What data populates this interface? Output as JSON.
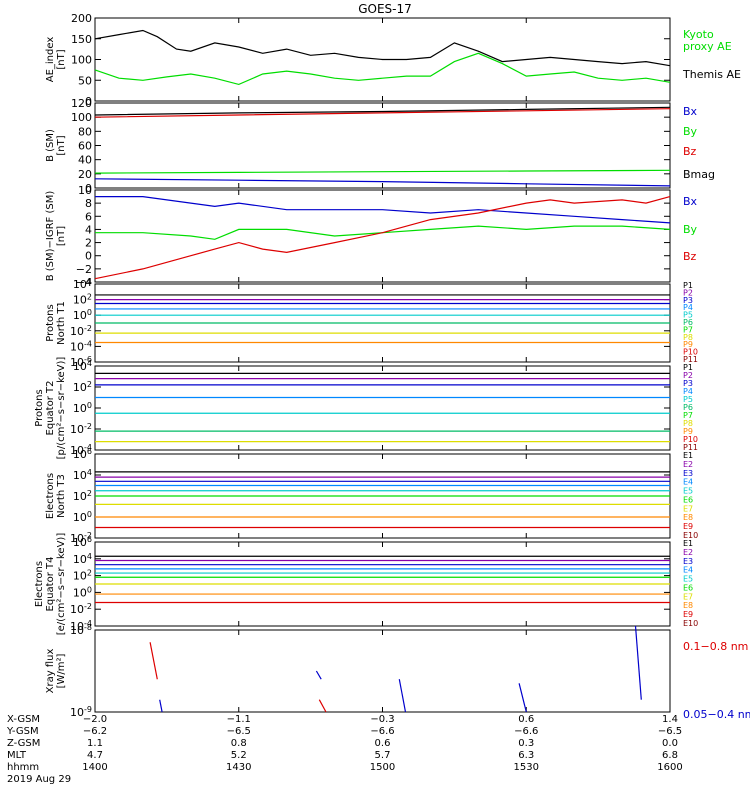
{
  "title": "GOES-17",
  "colors": {
    "frame": "#000000",
    "green": "#00dd00",
    "blue": "#0000cc",
    "red": "#dd0000",
    "orange": "#ff8800",
    "yellow": "#dddd00",
    "cyan": "#00cccc",
    "teal": "#00aaaa",
    "purple": "#8800aa"
  },
  "chart_data": [
    {
      "id": "ae",
      "type": "line",
      "ylabel": [
        "AE_index",
        "[nT]"
      ],
      "ylim": [
        0,
        200
      ],
      "yticks": [
        "0",
        "50",
        "100",
        "150",
        "200"
      ],
      "legend": [
        {
          "text": "Kyoto",
          "color": "#00dd00"
        },
        {
          "text": "proxy AE",
          "color": "#00dd00"
        },
        {
          "text": "Themis AE",
          "color": "#000000"
        }
      ],
      "series": [
        {
          "name": "Themis AE",
          "color": "#000000",
          "x": [
            0,
            5,
            10,
            13,
            17,
            20,
            25,
            30,
            35,
            40,
            45,
            50,
            55,
            60,
            65,
            70,
            75,
            80,
            85,
            90,
            95,
            100,
            105,
            110,
            115,
            120
          ],
          "y": [
            150,
            160,
            170,
            155,
            125,
            120,
            140,
            130,
            115,
            125,
            110,
            115,
            105,
            100,
            100,
            105,
            140,
            120,
            95,
            100,
            105,
            100,
            95,
            90,
            95,
            85
          ]
        },
        {
          "name": "Kyoto proxy AE",
          "color": "#00dd00",
          "x": [
            0,
            5,
            10,
            15,
            20,
            25,
            30,
            35,
            40,
            45,
            50,
            55,
            60,
            65,
            70,
            75,
            80,
            85,
            90,
            95,
            100,
            105,
            110,
            115,
            120
          ],
          "y": [
            75,
            55,
            50,
            58,
            65,
            55,
            40,
            65,
            72,
            65,
            55,
            50,
            55,
            60,
            60,
            95,
            115,
            90,
            60,
            65,
            70,
            55,
            50,
            55,
            45
          ]
        }
      ]
    },
    {
      "id": "bsm",
      "type": "line",
      "ylabel": [
        "B (SM)",
        "[nT]"
      ],
      "ylim": [
        0,
        120
      ],
      "yticks": [
        "0",
        "20",
        "40",
        "60",
        "80",
        "100",
        "120"
      ],
      "legend": [
        {
          "text": "Bx",
          "color": "#0000cc"
        },
        {
          "text": "By",
          "color": "#00dd00"
        },
        {
          "text": "Bz",
          "color": "#dd0000"
        },
        {
          "text": "Bmag",
          "color": "#000000"
        }
      ],
      "series": [
        {
          "name": "Bz",
          "color": "#dd0000",
          "x": [
            0,
            30,
            60,
            90,
            120
          ],
          "y": [
            100,
            103,
            106,
            109,
            112
          ]
        },
        {
          "name": "Bmag",
          "color": "#000000",
          "x": [
            0,
            30,
            60,
            90,
            120
          ],
          "y": [
            103,
            106,
            108,
            111,
            114
          ]
        },
        {
          "name": "By",
          "color": "#00dd00",
          "x": [
            0,
            30,
            60,
            90,
            120
          ],
          "y": [
            21,
            22,
            23,
            24,
            25
          ]
        },
        {
          "name": "Bx",
          "color": "#0000cc",
          "x": [
            0,
            30,
            60,
            90,
            120
          ],
          "y": [
            13,
            11,
            9,
            6,
            3
          ]
        }
      ]
    },
    {
      "id": "dbsm",
      "type": "line",
      "ylabel": [
        "B (SM)−IGRF (SM)",
        "[nT]"
      ],
      "ylim": [
        -4,
        10
      ],
      "yticks": [
        "−4",
        "−2",
        "0",
        "2",
        "4",
        "6",
        "8",
        "10"
      ],
      "legend": [
        {
          "text": "Bx",
          "color": "#0000cc"
        },
        {
          "text": "By",
          "color": "#00dd00"
        },
        {
          "text": "Bz",
          "color": "#dd0000"
        }
      ],
      "series": [
        {
          "name": "Bx",
          "color": "#0000cc",
          "x": [
            0,
            10,
            20,
            25,
            30,
            40,
            50,
            60,
            70,
            80,
            90,
            100,
            110,
            120
          ],
          "y": [
            9,
            9,
            8,
            7.5,
            8,
            7,
            7,
            7,
            6.5,
            7,
            6.5,
            6,
            5.5,
            5
          ]
        },
        {
          "name": "By",
          "color": "#00dd00",
          "x": [
            0,
            10,
            20,
            25,
            30,
            40,
            50,
            60,
            70,
            80,
            90,
            100,
            110,
            120
          ],
          "y": [
            3.5,
            3.5,
            3,
            2.5,
            4,
            4,
            3,
            3.5,
            4,
            4.5,
            4,
            4.5,
            4.5,
            4
          ]
        },
        {
          "name": "Bz",
          "color": "#dd0000",
          "x": [
            0,
            10,
            20,
            25,
            30,
            35,
            40,
            50,
            60,
            70,
            80,
            90,
            95,
            100,
            110,
            115,
            120
          ],
          "y": [
            -3.5,
            -2,
            0,
            1,
            2,
            1,
            0.5,
            2,
            3.5,
            5.5,
            6.5,
            8,
            8.5,
            8,
            8.5,
            8,
            9
          ]
        }
      ]
    },
    {
      "id": "p_t1",
      "type": "line",
      "scale": "log",
      "ylabel": [
        "Protons",
        "North T1"
      ],
      "ylim": [
        -6,
        4
      ],
      "yticks": [
        "10^-6",
        "10^-4",
        "10^-2",
        "10^0",
        "10^2",
        "10^4"
      ],
      "legend": [
        {
          "text": "P1",
          "color": "#000000"
        },
        {
          "text": "P2",
          "color": "#8800aa"
        },
        {
          "text": "P3",
          "color": "#0000cc"
        },
        {
          "text": "P4",
          "color": "#0088ff"
        },
        {
          "text": "P5",
          "color": "#00cccc"
        },
        {
          "text": "P6",
          "color": "#00bb66"
        },
        {
          "text": "P7",
          "color": "#00dd00"
        },
        {
          "text": "P8",
          "color": "#dddd00"
        },
        {
          "text": "P9",
          "color": "#ff8800"
        },
        {
          "text": "P10",
          "color": "#dd0000"
        },
        {
          "text": "P11",
          "color": "#880000"
        }
      ],
      "levels": [
        {
          "name": "P1",
          "color": "#000000",
          "y": 2.6
        },
        {
          "name": "P2",
          "color": "#8800aa",
          "y": 2.0
        },
        {
          "name": "P3",
          "color": "#0000cc",
          "y": 1.5
        },
        {
          "name": "P4",
          "color": "#0088ff",
          "y": 0.8
        },
        {
          "name": "P5",
          "color": "#00cccc",
          "y": 0.0
        },
        {
          "name": "P6",
          "color": "#00bb66",
          "y": -1.0
        },
        {
          "name": "P7",
          "color": "#dddd00",
          "y": -2.3
        },
        {
          "name": "P8",
          "color": "#ff8800",
          "y": -3.5
        }
      ]
    },
    {
      "id": "p_t2",
      "type": "line",
      "scale": "log",
      "ylabel": [
        "Protons",
        "Equator T2",
        "[p/(cm²−s−sr−keV)]"
      ],
      "ylim": [
        -4,
        4
      ],
      "yticks": [
        "10^-4",
        "10^-2",
        "10^0",
        "10^2",
        "10^4"
      ],
      "legend": [
        {
          "text": "P1",
          "color": "#000000"
        },
        {
          "text": "P2",
          "color": "#8800aa"
        },
        {
          "text": "P3",
          "color": "#0000cc"
        },
        {
          "text": "P4",
          "color": "#0088ff"
        },
        {
          "text": "P5",
          "color": "#00cccc"
        },
        {
          "text": "P6",
          "color": "#00bb66"
        },
        {
          "text": "P7",
          "color": "#00dd00"
        },
        {
          "text": "P8",
          "color": "#dddd00"
        },
        {
          "text": "P9",
          "color": "#ff8800"
        },
        {
          "text": "P10",
          "color": "#dd0000"
        },
        {
          "text": "P11",
          "color": "#880000"
        }
      ],
      "levels": [
        {
          "name": "P1",
          "color": "#000000",
          "y": 3.3
        },
        {
          "name": "P2",
          "color": "#8800aa",
          "y": 2.8
        },
        {
          "name": "P3",
          "color": "#0000cc",
          "y": 2.2
        },
        {
          "name": "P4",
          "color": "#0088ff",
          "y": 1.0
        },
        {
          "name": "P5",
          "color": "#00cccc",
          "y": -0.5
        },
        {
          "name": "P6",
          "color": "#00bb66",
          "y": -2.2
        },
        {
          "name": "P7",
          "color": "#dddd00",
          "y": -3.2
        }
      ]
    },
    {
      "id": "e_t3",
      "type": "line",
      "scale": "log",
      "ylabel": [
        "Electrons",
        "North T3"
      ],
      "ylim": [
        -2,
        6
      ],
      "yticks": [
        "10^-2",
        "10^0",
        "10^2",
        "10^4",
        "10^6"
      ],
      "legend": [
        {
          "text": "E1",
          "color": "#000000"
        },
        {
          "text": "E2",
          "color": "#8800aa"
        },
        {
          "text": "E3",
          "color": "#0000cc"
        },
        {
          "text": "E4",
          "color": "#0088ff"
        },
        {
          "text": "E5",
          "color": "#00cccc"
        },
        {
          "text": "E6",
          "color": "#00dd00"
        },
        {
          "text": "E7",
          "color": "#dddd00"
        },
        {
          "text": "E8",
          "color": "#ff8800"
        },
        {
          "text": "E9",
          "color": "#dd0000"
        },
        {
          "text": "E10",
          "color": "#880000"
        }
      ],
      "levels": [
        {
          "name": "E1",
          "color": "#000000",
          "y": 4.3
        },
        {
          "name": "E2",
          "color": "#8800aa",
          "y": 3.8
        },
        {
          "name": "E3",
          "color": "#0000cc",
          "y": 3.4
        },
        {
          "name": "E4",
          "color": "#0088ff",
          "y": 3.0
        },
        {
          "name": "E5",
          "color": "#00cccc",
          "y": 2.5
        },
        {
          "name": "E6",
          "color": "#00dd00",
          "y": 2.0
        },
        {
          "name": "E7",
          "color": "#dddd00",
          "y": 1.2
        },
        {
          "name": "E8",
          "color": "#ff8800",
          "y": 0.0
        },
        {
          "name": "E9",
          "color": "#dd0000",
          "y": -1.0
        }
      ]
    },
    {
      "id": "e_t4",
      "type": "line",
      "scale": "log",
      "ylabel": [
        "Electrons",
        "Equator T4",
        "[e/(cm²−s−sr−keV)]"
      ],
      "ylim": [
        -4,
        6
      ],
      "yticks": [
        "10^-4",
        "10^-2",
        "10^0",
        "10^2",
        "10^4",
        "10^6"
      ],
      "legend": [
        {
          "text": "E1",
          "color": "#000000"
        },
        {
          "text": "E2",
          "color": "#8800aa"
        },
        {
          "text": "E3",
          "color": "#0000cc"
        },
        {
          "text": "E4",
          "color": "#0088ff"
        },
        {
          "text": "E5",
          "color": "#00cccc"
        },
        {
          "text": "E6",
          "color": "#00dd00"
        },
        {
          "text": "E7",
          "color": "#dddd00"
        },
        {
          "text": "E8",
          "color": "#ff8800"
        },
        {
          "text": "E9",
          "color": "#dd0000"
        },
        {
          "text": "E10",
          "color": "#880000"
        }
      ],
      "levels": [
        {
          "name": "E1",
          "color": "#000000",
          "y": 4.3
        },
        {
          "name": "E2",
          "color": "#8800aa",
          "y": 3.8
        },
        {
          "name": "E3",
          "color": "#0000cc",
          "y": 3.3
        },
        {
          "name": "E4",
          "color": "#0088ff",
          "y": 2.8
        },
        {
          "name": "E5",
          "color": "#00cccc",
          "y": 2.3
        },
        {
          "name": "E6",
          "color": "#00dd00",
          "y": 1.8
        },
        {
          "name": "E7",
          "color": "#dddd00",
          "y": 1.0
        },
        {
          "name": "E8",
          "color": "#ff8800",
          "y": -0.2
        },
        {
          "name": "E9",
          "color": "#dd0000",
          "y": -1.2
        }
      ]
    },
    {
      "id": "xray",
      "type": "line",
      "scale": "log",
      "ylabel": [
        "Xray flux",
        "[W/m²]"
      ],
      "ylim": [
        -9,
        -8
      ],
      "yticks": [
        "10^-9",
        "10^-8"
      ],
      "legend": [
        {
          "text": "0.1−0.8 nm",
          "color": "#dd0000"
        },
        {
          "text": "0.05−0.4 nm",
          "color": "#0000cc"
        }
      ],
      "series": [
        {
          "name": "0.1−0.8 nm (a)",
          "color": "#dd0000",
          "x": [
            11.5,
            13
          ],
          "y": [
            -8.15,
            -8.6
          ]
        },
        {
          "name": "0.1−0.8 nm (b)",
          "color": "#dd0000",
          "x": [
            46.8,
            48.2
          ],
          "y": [
            -8.85,
            -9.0
          ]
        },
        {
          "name": "0.05−0.4 nm (a)",
          "color": "#0000cc",
          "x": [
            13.5,
            14
          ],
          "y": [
            -8.85,
            -9.0
          ]
        },
        {
          "name": "0.05−0.4 nm (b)",
          "color": "#0000cc",
          "x": [
            46.2,
            47.2
          ],
          "y": [
            -8.5,
            -8.6
          ]
        },
        {
          "name": "0.05−0.4 nm (c)",
          "color": "#0000cc",
          "x": [
            63.5,
            64.8
          ],
          "y": [
            -8.6,
            -9.0
          ]
        },
        {
          "name": "0.05−0.4 nm (d)",
          "color": "#0000cc",
          "x": [
            88.5,
            90
          ],
          "y": [
            -8.65,
            -9.0
          ]
        },
        {
          "name": "0.05−0.4 nm (e)",
          "color": "#0000cc",
          "x": [
            112.8,
            114
          ],
          "y": [
            -7.95,
            -8.85
          ]
        }
      ]
    }
  ],
  "xaxis": {
    "row_labels": [
      "X-GSM",
      "Y-GSM",
      "Z-GSM",
      "MLT",
      "hhmm",
      "2019 Aug 29"
    ],
    "ticks": [
      {
        "x": 0,
        "values": [
          "−2.0",
          "−6.2",
          "1.1",
          "4.7",
          "1400"
        ]
      },
      {
        "x": 30,
        "values": [
          "−1.1",
          "−6.5",
          "0.8",
          "5.2",
          "1430"
        ]
      },
      {
        "x": 60,
        "values": [
          "−0.3",
          "−6.6",
          "0.6",
          "5.7",
          "1500"
        ]
      },
      {
        "x": 90,
        "values": [
          "0.6",
          "−6.6",
          "0.3",
          "6.3",
          "1530"
        ]
      },
      {
        "x": 120,
        "values": [
          "1.4",
          "−6.5",
          "0.0",
          "6.8",
          "1600"
        ]
      }
    ]
  }
}
